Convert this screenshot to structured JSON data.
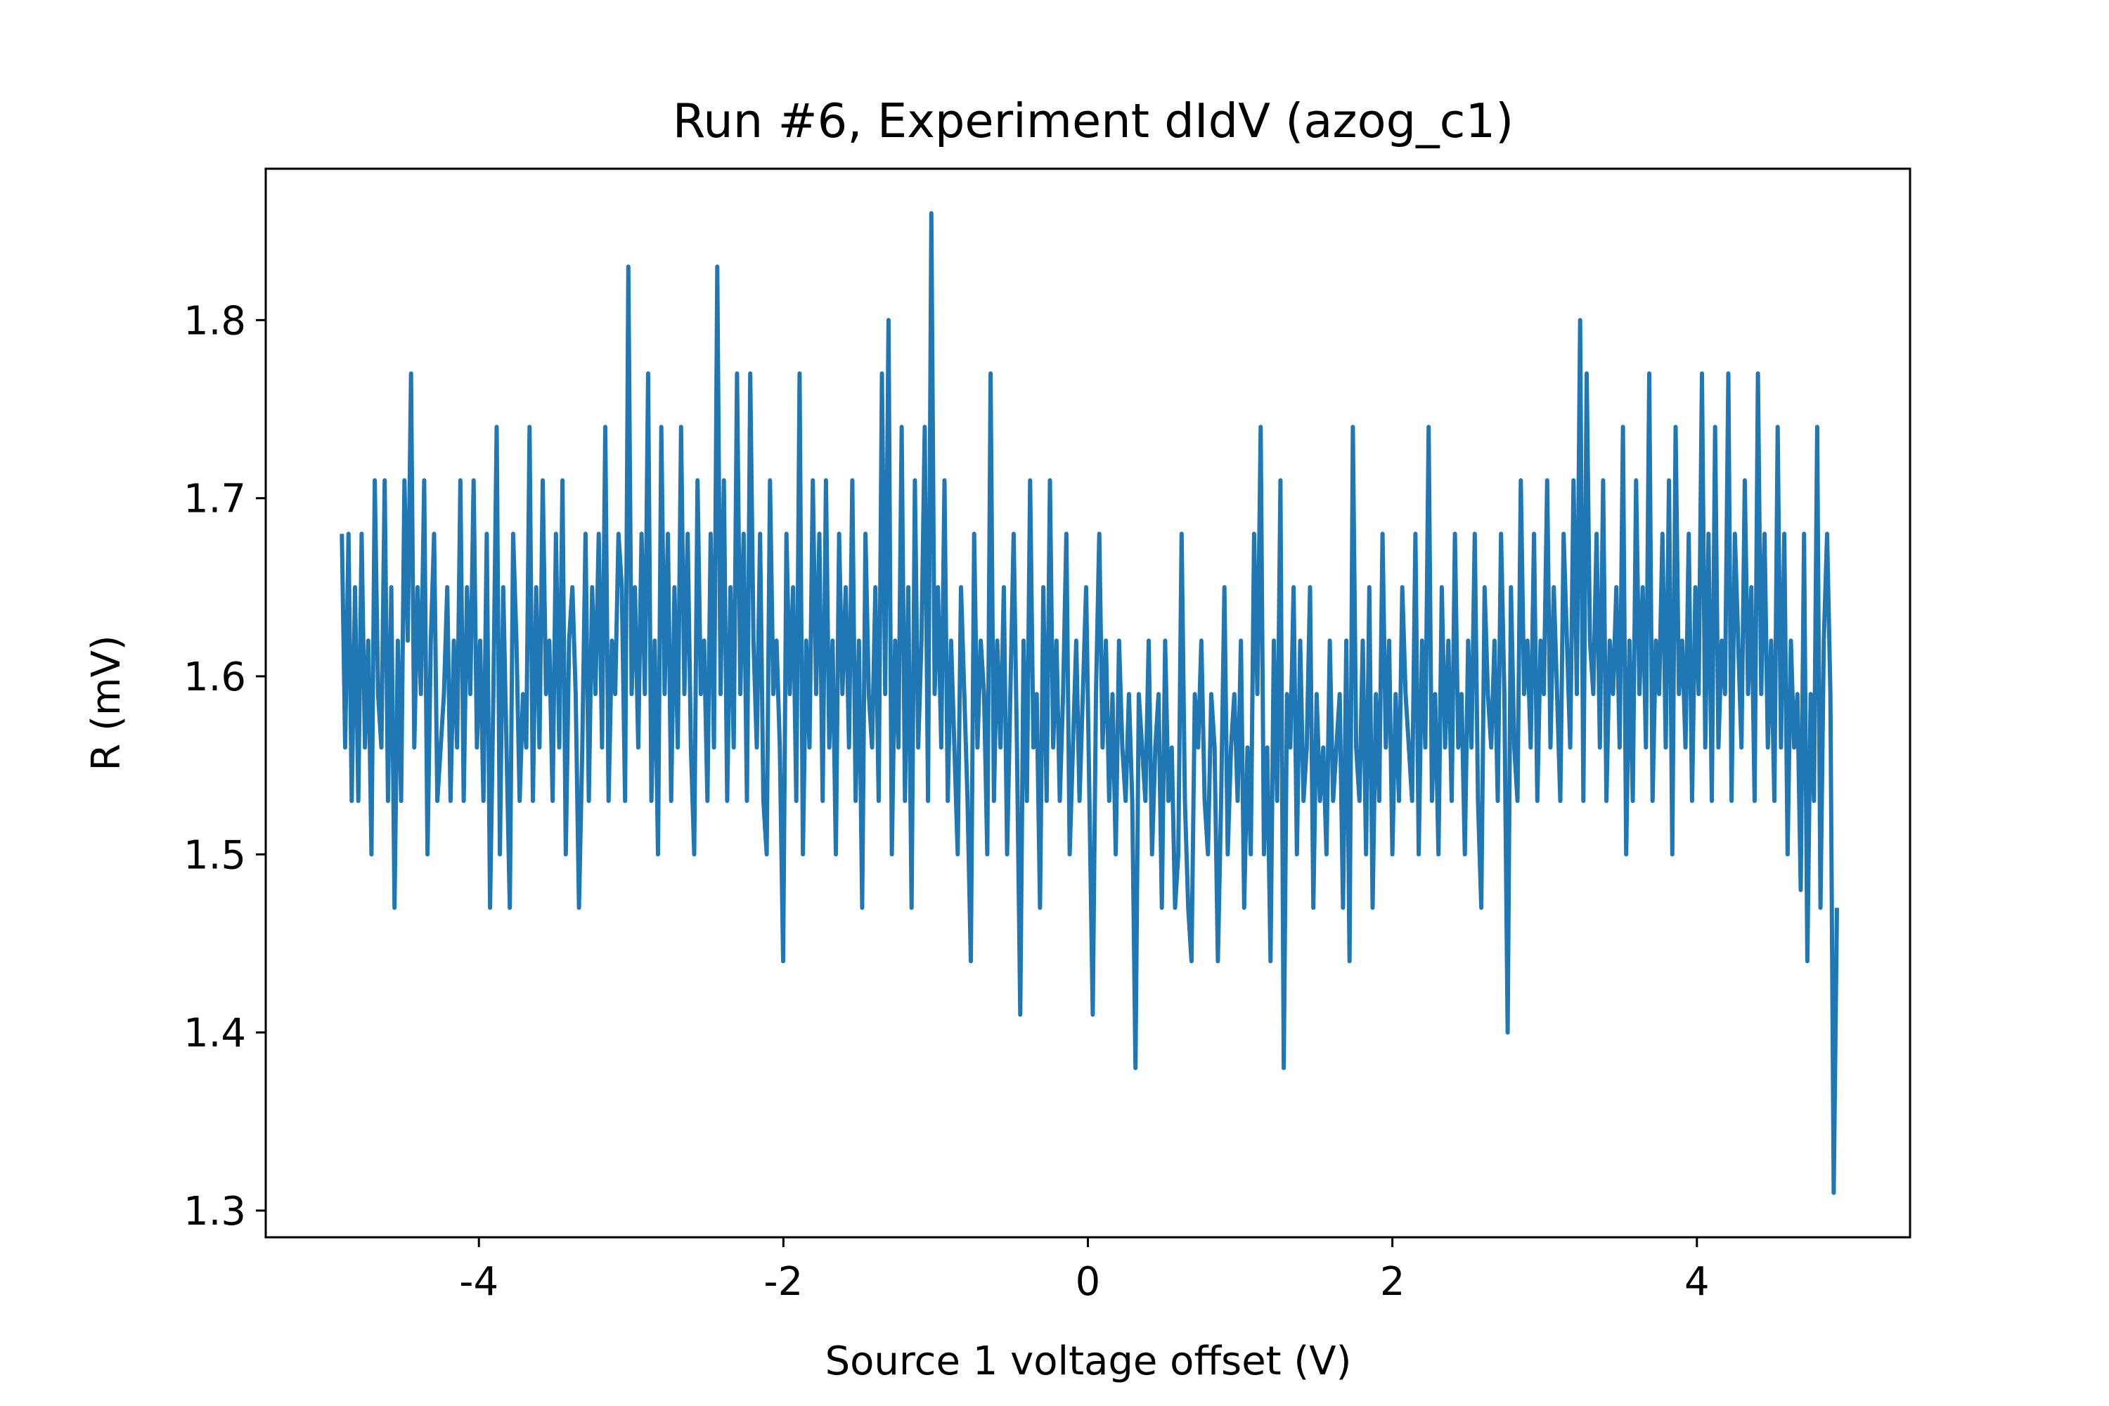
{
  "chart_data": {
    "type": "line",
    "title": "Run #6, Experiment dIdV (azog_c1)",
    "xlabel": "Source 1 voltage offset (V)",
    "ylabel": "R (mV)",
    "xlim": [
      -5.4,
      5.4
    ],
    "ylim": [
      1.285,
      1.885
    ],
    "grid": false,
    "legend": "none",
    "x_ticks": [
      {
        "value": -4,
        "label": "-4"
      },
      {
        "value": -2,
        "label": "-2"
      },
      {
        "value": 0,
        "label": "0"
      },
      {
        "value": 2,
        "label": "2"
      },
      {
        "value": 4,
        "label": "4"
      }
    ],
    "y_ticks": [
      {
        "value": 1.3,
        "label": "1.3"
      },
      {
        "value": 1.4,
        "label": "1.4"
      },
      {
        "value": 1.5,
        "label": "1.5"
      },
      {
        "value": 1.6,
        "label": "1.6"
      },
      {
        "value": 1.7,
        "label": "1.7"
      },
      {
        "value": 1.8,
        "label": "1.8"
      }
    ],
    "series": [
      {
        "color": "#1f77b4",
        "x_start": -4.9,
        "x_end": 4.92,
        "y": [
          1.68,
          1.56,
          1.68,
          1.53,
          1.65,
          1.53,
          1.68,
          1.56,
          1.62,
          1.5,
          1.71,
          1.59,
          1.56,
          1.71,
          1.53,
          1.65,
          1.47,
          1.62,
          1.53,
          1.71,
          1.62,
          1.77,
          1.56,
          1.65,
          1.59,
          1.71,
          1.5,
          1.62,
          1.68,
          1.53,
          1.56,
          1.59,
          1.65,
          1.53,
          1.62,
          1.56,
          1.71,
          1.53,
          1.65,
          1.59,
          1.71,
          1.56,
          1.62,
          1.53,
          1.68,
          1.47,
          1.59,
          1.74,
          1.5,
          1.65,
          1.56,
          1.47,
          1.68,
          1.62,
          1.53,
          1.59,
          1.56,
          1.74,
          1.53,
          1.65,
          1.56,
          1.71,
          1.59,
          1.62,
          1.53,
          1.68,
          1.56,
          1.71,
          1.5,
          1.62,
          1.65,
          1.59,
          1.47,
          1.56,
          1.68,
          1.53,
          1.65,
          1.59,
          1.68,
          1.56,
          1.74,
          1.53,
          1.62,
          1.59,
          1.68,
          1.65,
          1.53,
          1.83,
          1.59,
          1.65,
          1.56,
          1.68,
          1.59,
          1.77,
          1.53,
          1.62,
          1.5,
          1.74,
          1.59,
          1.68,
          1.53,
          1.65,
          1.56,
          1.74,
          1.59,
          1.68,
          1.56,
          1.5,
          1.71,
          1.59,
          1.62,
          1.53,
          1.68,
          1.56,
          1.83,
          1.59,
          1.71,
          1.53,
          1.65,
          1.56,
          1.77,
          1.59,
          1.68,
          1.53,
          1.77,
          1.62,
          1.56,
          1.68,
          1.53,
          1.5,
          1.71,
          1.59,
          1.62,
          1.56,
          1.44,
          1.68,
          1.59,
          1.65,
          1.53,
          1.77,
          1.5,
          1.62,
          1.56,
          1.71,
          1.59,
          1.68,
          1.53,
          1.71,
          1.56,
          1.62,
          1.5,
          1.68,
          1.59,
          1.65,
          1.56,
          1.71,
          1.53,
          1.62,
          1.47,
          1.68,
          1.59,
          1.56,
          1.65,
          1.53,
          1.77,
          1.59,
          1.8,
          1.5,
          1.62,
          1.56,
          1.74,
          1.53,
          1.65,
          1.47,
          1.71,
          1.56,
          1.62,
          1.74,
          1.53,
          1.86,
          1.59,
          1.65,
          1.56,
          1.71,
          1.53,
          1.62,
          1.56,
          1.5,
          1.65,
          1.59,
          1.53,
          1.44,
          1.68,
          1.56,
          1.62,
          1.59,
          1.5,
          1.77,
          1.53,
          1.62,
          1.56,
          1.65,
          1.5,
          1.59,
          1.68,
          1.56,
          1.41,
          1.62,
          1.53,
          1.71,
          1.56,
          1.59,
          1.47,
          1.65,
          1.53,
          1.71,
          1.56,
          1.62,
          1.53,
          1.59,
          1.68,
          1.5,
          1.56,
          1.62,
          1.53,
          1.59,
          1.65,
          1.53,
          1.41,
          1.59,
          1.68,
          1.56,
          1.62,
          1.53,
          1.59,
          1.5,
          1.62,
          1.56,
          1.53,
          1.59,
          1.53,
          1.38,
          1.59,
          1.56,
          1.53,
          1.62,
          1.5,
          1.56,
          1.59,
          1.47,
          1.62,
          1.53,
          1.56,
          1.47,
          1.5,
          1.68,
          1.53,
          1.47,
          1.44,
          1.59,
          1.56,
          1.62,
          1.53,
          1.5,
          1.59,
          1.56,
          1.44,
          1.53,
          1.65,
          1.5,
          1.56,
          1.59,
          1.53,
          1.62,
          1.47,
          1.56,
          1.5,
          1.68,
          1.59,
          1.74,
          1.5,
          1.56,
          1.44,
          1.62,
          1.53,
          1.71,
          1.38,
          1.59,
          1.56,
          1.65,
          1.5,
          1.62,
          1.53,
          1.56,
          1.65,
          1.47,
          1.59,
          1.53,
          1.56,
          1.5,
          1.62,
          1.53,
          1.56,
          1.59,
          1.47,
          1.62,
          1.44,
          1.74,
          1.56,
          1.53,
          1.62,
          1.5,
          1.65,
          1.47,
          1.59,
          1.53,
          1.68,
          1.56,
          1.62,
          1.5,
          1.59,
          1.53,
          1.65,
          1.59,
          1.56,
          1.53,
          1.68,
          1.5,
          1.62,
          1.56,
          1.74,
          1.53,
          1.59,
          1.5,
          1.65,
          1.56,
          1.62,
          1.53,
          1.68,
          1.56,
          1.59,
          1.5,
          1.62,
          1.56,
          1.68,
          1.53,
          1.47,
          1.65,
          1.59,
          1.56,
          1.62,
          1.53,
          1.68,
          1.59,
          1.4,
          1.65,
          1.56,
          1.53,
          1.71,
          1.59,
          1.62,
          1.56,
          1.68,
          1.53,
          1.62,
          1.59,
          1.71,
          1.56,
          1.65,
          1.59,
          1.53,
          1.68,
          1.62,
          1.56,
          1.71,
          1.59,
          1.8,
          1.53,
          1.77,
          1.62,
          1.59,
          1.68,
          1.56,
          1.71,
          1.53,
          1.62,
          1.59,
          1.65,
          1.56,
          1.74,
          1.5,
          1.62,
          1.53,
          1.71,
          1.59,
          1.65,
          1.56,
          1.77,
          1.53,
          1.62,
          1.59,
          1.68,
          1.56,
          1.71,
          1.5,
          1.74,
          1.59,
          1.62,
          1.56,
          1.68,
          1.53,
          1.65,
          1.59,
          1.77,
          1.56,
          1.68,
          1.53,
          1.74,
          1.56,
          1.62,
          1.59,
          1.77,
          1.53,
          1.68,
          1.62,
          1.56,
          1.71,
          1.59,
          1.65,
          1.53,
          1.77,
          1.59,
          1.68,
          1.56,
          1.62,
          1.53,
          1.74,
          1.56,
          1.68,
          1.5,
          1.62,
          1.56,
          1.59,
          1.48,
          1.68,
          1.44,
          1.59,
          1.53,
          1.74,
          1.47,
          1.62,
          1.68,
          1.59,
          1.31,
          1.47
        ]
      }
    ]
  }
}
